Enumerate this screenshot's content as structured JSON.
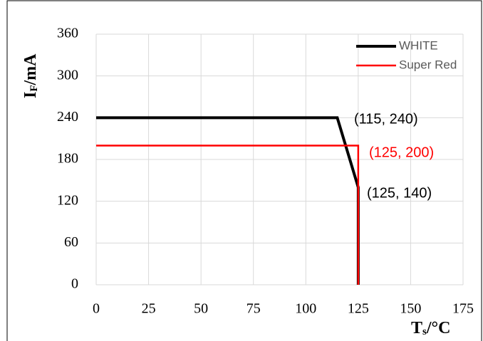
{
  "chart_data": {
    "type": "line",
    "x_label": {
      "main": "T",
      "sub": "s",
      "unit": "/°C"
    },
    "y_label": {
      "main": "I",
      "sub": "F",
      "unit": "/mA"
    },
    "series": [
      {
        "name": "WHITE",
        "color": "#000000",
        "x": [
          0,
          115,
          125,
          125
        ],
        "values": [
          240,
          240,
          140,
          0
        ]
      },
      {
        "name": "Super Red",
        "color": "#ff0000",
        "x": [
          0,
          125,
          125
        ],
        "values": [
          200,
          200,
          0
        ]
      }
    ],
    "annotations": [
      {
        "text": "(115, 240)",
        "color": "#000000"
      },
      {
        "text": "(125, 200)",
        "color": "#ff0000"
      },
      {
        "text": "(125, 140)",
        "color": "#000000"
      }
    ],
    "xlim": [
      0,
      175
    ],
    "xticks": [
      0,
      25,
      50,
      75,
      100,
      125,
      150,
      175
    ],
    "ylim": [
      0,
      360
    ],
    "yticks": [
      0,
      60,
      120,
      180,
      240,
      300,
      360
    ],
    "grid": true,
    "legend": "upper right"
  }
}
